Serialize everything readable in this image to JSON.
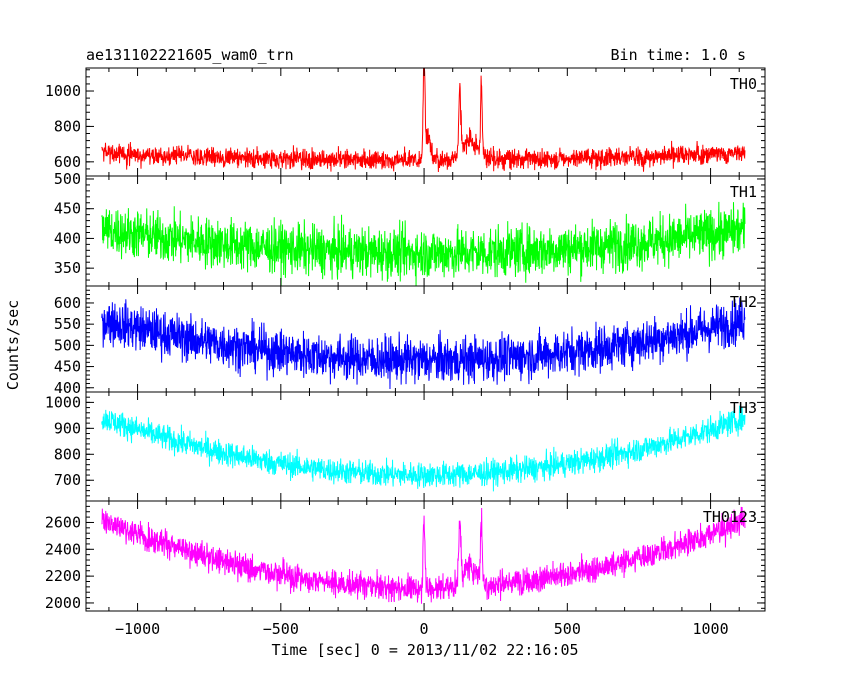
{
  "header": {
    "left_title": "ae131102221605_wam0_trn",
    "right_title": "Bin time: 1.0 s"
  },
  "chart_data": {
    "type": "line",
    "xlabel": "Time [sec] 0 = 2013/11/02 22:16:05",
    "ylabel": "Counts/sec",
    "xlim": [
      -1180,
      1190
    ],
    "x_ticks": [
      -1000,
      -500,
      0,
      500,
      1000
    ],
    "x_tick_labels": [
      "−1000",
      "−500",
      "0",
      "500",
      "1000"
    ],
    "x_data_range": [
      -1125,
      1120
    ],
    "panels": [
      {
        "name": "TH0",
        "color": "#ff0000",
        "ylim": [
          520,
          1130
        ],
        "y_ticks": [
          600,
          800,
          1000
        ],
        "y_tick_labels": [
          "600",
          "800",
          "1000"
        ],
        "baseline_edge": 650,
        "baseline_center": 610,
        "noise": 40,
        "spikes": [
          {
            "t": 0,
            "peak": 1130,
            "width": 3
          },
          {
            "t": 10,
            "peak": 760,
            "width": 10
          },
          {
            "t": 125,
            "peak": 950,
            "width": 4
          },
          {
            "t": 160,
            "peak": 720,
            "width": 25
          },
          {
            "t": 200,
            "peak": 1000,
            "width": 3
          }
        ]
      },
      {
        "name": "TH1",
        "color": "#00ff00",
        "ylim": [
          320,
          505
        ],
        "y_ticks": [
          350,
          400,
          450,
          500
        ],
        "y_tick_labels": [
          "350",
          "400",
          "450",
          "500"
        ],
        "baseline_edge": 415,
        "baseline_center": 375,
        "noise": 30,
        "spikes": []
      },
      {
        "name": "TH2",
        "color": "#0000ff",
        "ylim": [
          390,
          640
        ],
        "y_ticks": [
          400,
          450,
          500,
          550,
          600
        ],
        "y_tick_labels": [
          "400",
          "450",
          "500",
          "550",
          "600"
        ],
        "baseline_edge": 560,
        "baseline_center": 465,
        "noise": 38,
        "spikes": []
      },
      {
        "name": "TH3",
        "color": "#00ffff",
        "ylim": [
          620,
          1040
        ],
        "y_ticks": [
          700,
          800,
          900,
          1000
        ],
        "y_tick_labels": [
          "700",
          "800",
          "900",
          "1000"
        ],
        "baseline_edge": 940,
        "baseline_center": 720,
        "noise": 35,
        "spikes": []
      },
      {
        "name": "TH0123",
        "color": "#ff00ff",
        "ylim": [
          1940,
          2760
        ],
        "y_ticks": [
          2000,
          2200,
          2400,
          2600
        ],
        "y_tick_labels": [
          "2000",
          "2200",
          "2400",
          "2600"
        ],
        "baseline_edge": 2620,
        "baseline_center": 2110,
        "noise": 70,
        "spikes": [
          {
            "t": 0,
            "peak": 2700,
            "width": 3
          },
          {
            "t": 125,
            "peak": 2520,
            "width": 4
          },
          {
            "t": 160,
            "peak": 2260,
            "width": 25
          },
          {
            "t": 200,
            "peak": 2560,
            "width": 3
          }
        ]
      }
    ]
  }
}
